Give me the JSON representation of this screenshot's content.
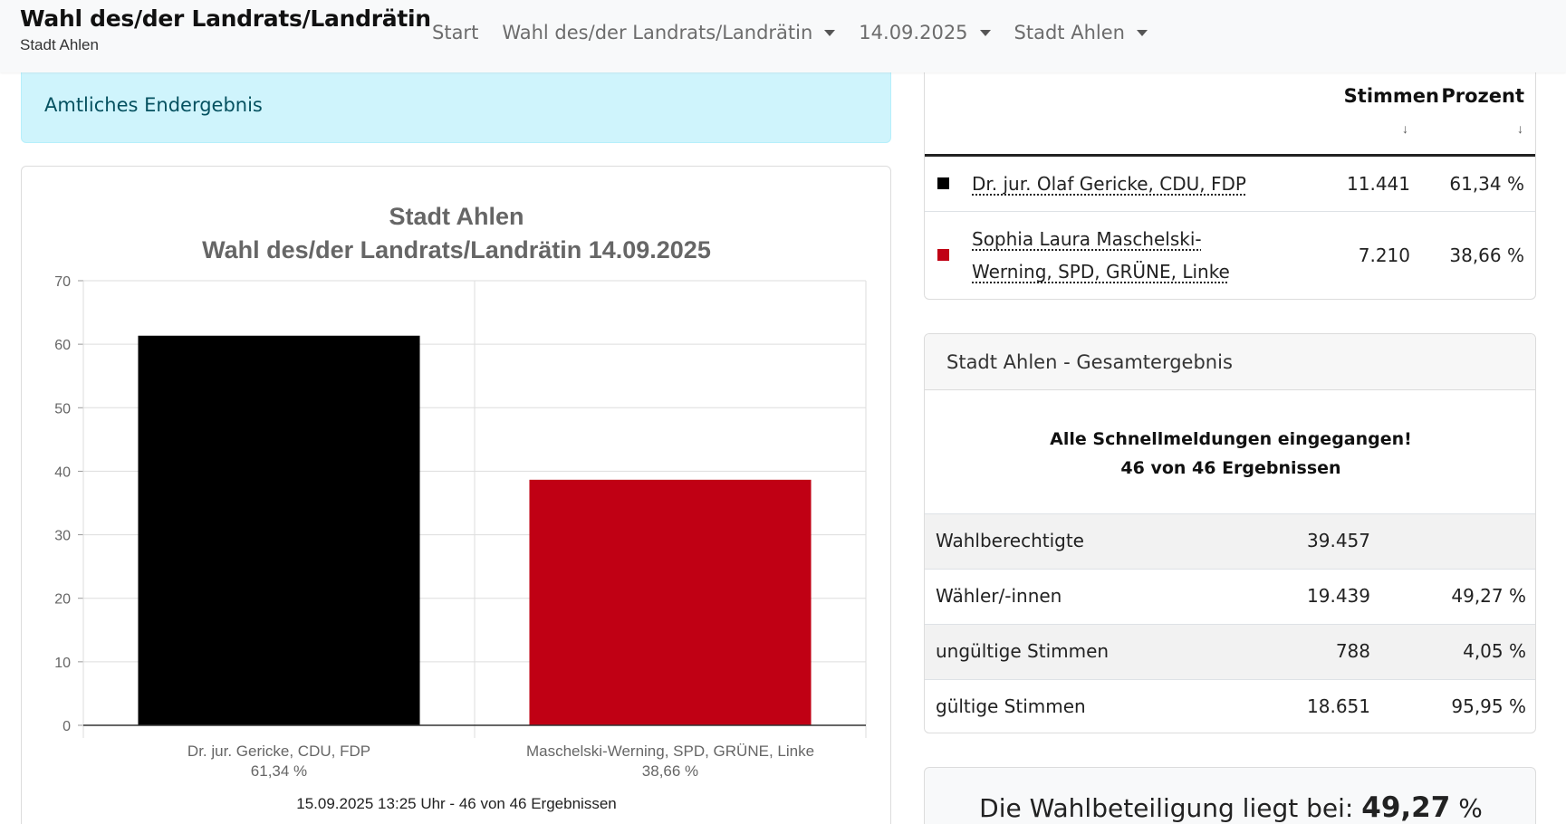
{
  "navbar": {
    "brand_title": "Wahl des/der Landrats/Landrätin",
    "brand_subtitle": "Stadt Ahlen",
    "items": [
      {
        "label": "Start",
        "dropdown": false
      },
      {
        "label": "Wahl des/der Landrats/Landrätin",
        "dropdown": true
      },
      {
        "label": "14.09.2025",
        "dropdown": true
      },
      {
        "label": "Stadt Ahlen",
        "dropdown": true
      }
    ]
  },
  "alert": {
    "text": "Amtliches Endergebnis"
  },
  "chart_data": {
    "type": "bar",
    "title": "Stadt Ahlen",
    "subtitle": "Wahl des/der Landrats/Landrätin 14.09.2025",
    "categories": [
      "Dr. jur. Gericke, CDU, FDP",
      "Maschelski-Werning, SPD, GRÜNE, Linke"
    ],
    "category_sublabels": [
      "61,34 %",
      "38,66 %"
    ],
    "values": [
      61.34,
      38.66
    ],
    "colors": [
      "#000000",
      "#c00014"
    ],
    "ylim": [
      0,
      70
    ],
    "yticks": [
      0,
      10,
      20,
      30,
      40,
      50,
      60,
      70
    ],
    "grid": true,
    "footer": "15.09.2025 13:25 Uhr - 46 von 46 Ergebnissen"
  },
  "results": {
    "columns": {
      "votes": "Stimmen",
      "percent": "Prozent",
      "sort_icon": "↓"
    },
    "rows": [
      {
        "name_line1": "Dr. jur. Olaf Gericke, CDU, FDP",
        "name_line2": "",
        "votes": "11.441",
        "percent": "61,34 %",
        "color": "#000000"
      },
      {
        "name_line1": "Sophia Laura Maschelski-",
        "name_line2": "Werning, SPD, GRÜNE, Linke",
        "votes": "7.210",
        "percent": "38,66 %",
        "color": "#c00014"
      }
    ]
  },
  "summary": {
    "header": "Stadt Ahlen - Gesamtergebnis",
    "notice_line1": "Alle Schnellmeldungen eingegangen!",
    "notice_line2": "46 von 46 Ergebnissen",
    "rows": [
      {
        "label": "Wahlberechtigte",
        "value": "39.457",
        "percent": ""
      },
      {
        "label": "Wähler/-innen",
        "value": "19.439",
        "percent": "49,27 %"
      },
      {
        "label": "ungültige Stimmen",
        "value": "788",
        "percent": "4,05 %"
      },
      {
        "label": "gültige Stimmen",
        "value": "18.651",
        "percent": "95,95 %"
      }
    ]
  },
  "turnout": {
    "prefix": "Die Wahlbeteiligung liegt bei:",
    "value": "49,27",
    "suffix": "%"
  }
}
